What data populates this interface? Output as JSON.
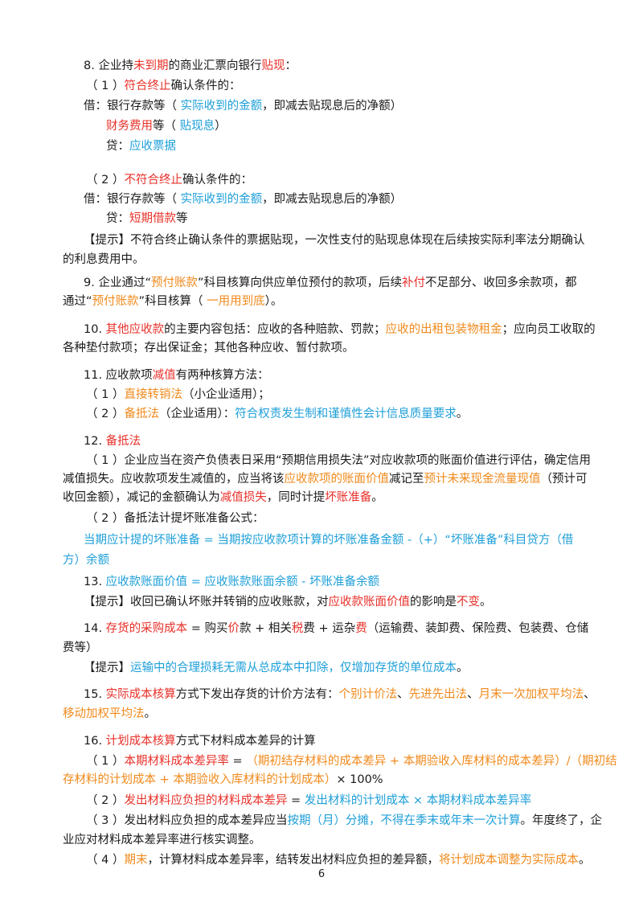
{
  "page_number": "6",
  "colors": {
    "red": "#e8312a",
    "orange": "#f08a1c",
    "blue": "#1e9fd8",
    "black": "#1a1a1a"
  },
  "lines": [
    {
      "top": 70,
      "left": 104,
      "segs": [
        [
          "k",
          "8. 企业持"
        ],
        [
          "r",
          "未到期"
        ],
        [
          "k",
          "的商业汇票向银行"
        ],
        [
          "r",
          "贴现"
        ],
        [
          "k",
          "："
        ]
      ]
    },
    {
      "top": 95,
      "left": 107,
      "segs": [
        [
          "k",
          "（ 1 ）"
        ],
        [
          "r",
          "符合终止"
        ],
        [
          "k",
          "确认条件的："
        ]
      ]
    },
    {
      "top": 120,
      "left": 104,
      "segs": [
        [
          "k",
          "借：银行存款等（ "
        ],
        [
          "b",
          "实际收到的金额"
        ],
        [
          "k",
          "，即减去贴现息后的净额）"
        ]
      ]
    },
    {
      "top": 145,
      "left": 132,
      "segs": [
        [
          "r",
          "财务费用"
        ],
        [
          "k",
          "等（ "
        ],
        [
          "b",
          "贴现息"
        ],
        [
          "k",
          "）"
        ]
      ]
    },
    {
      "top": 170,
      "left": 132,
      "segs": [
        [
          "k",
          "贷："
        ],
        [
          "b",
          "应收票据"
        ]
      ]
    },
    {
      "top": 212,
      "left": 107,
      "segs": [
        [
          "k",
          "（ 2 ）"
        ],
        [
          "r",
          "不符合终止"
        ],
        [
          "k",
          "确认条件的："
        ]
      ]
    },
    {
      "top": 236,
      "left": 104,
      "segs": [
        [
          "k",
          "借：银行存款等（ "
        ],
        [
          "b",
          "实际收到的金额"
        ],
        [
          "k",
          "，即减去贴现息后的净额）"
        ]
      ]
    },
    {
      "top": 260,
      "left": 132,
      "segs": [
        [
          "k",
          "贷："
        ],
        [
          "r",
          "短期借款"
        ],
        [
          "k",
          "等"
        ]
      ]
    },
    {
      "top": 287,
      "left": 104,
      "segs": [
        [
          "k",
          "【提示】不符合终止确认条件的票据贴现，一次性支付的贴现息体现在后续按实际利率法分期确认"
        ]
      ]
    },
    {
      "top": 311,
      "left": 78,
      "segs": [
        [
          "k",
          "的利息费用中。"
        ]
      ]
    },
    {
      "top": 340,
      "left": 104,
      "segs": [
        [
          "k",
          "9. 企业通过“"
        ],
        [
          "o",
          "预付账款"
        ],
        [
          "k",
          "”科目核算向供应单位预付的款项，后续"
        ],
        [
          "r",
          "补付"
        ],
        [
          "k",
          "不足部分、收回多余款项，都"
        ]
      ]
    },
    {
      "top": 363,
      "left": 78,
      "segs": [
        [
          "k",
          "通过“"
        ],
        [
          "o",
          "预付账款"
        ],
        [
          "k",
          "”科目核算（ "
        ],
        [
          "o",
          "一用用到底"
        ],
        [
          "k",
          "）。"
        ]
      ]
    },
    {
      "top": 398,
      "left": 104,
      "segs": [
        [
          "k",
          "10. "
        ],
        [
          "r",
          "其他应收款"
        ],
        [
          "k",
          "的主要内容包括：应收的各种赔款、罚款；"
        ],
        [
          "o",
          "应收的出租包装物租金"
        ],
        [
          "k",
          "；应向员工收取的"
        ]
      ]
    },
    {
      "top": 421,
      "left": 78,
      "segs": [
        [
          "k",
          "各种垫付款项；存出保证金；其他各种应收、暂付款项。"
        ]
      ]
    },
    {
      "top": 455,
      "left": 104,
      "segs": [
        [
          "k",
          "11. 应收款项"
        ],
        [
          "r",
          "减值"
        ],
        [
          "k",
          "有两种核算方法："
        ]
      ]
    },
    {
      "top": 479,
      "left": 107,
      "segs": [
        [
          "k",
          "（ 1 ）"
        ],
        [
          "o",
          "直接转销法"
        ],
        [
          "k",
          "（小企业适用）；"
        ]
      ]
    },
    {
      "top": 503,
      "left": 107,
      "segs": [
        [
          "k",
          "（ 2 ）"
        ],
        [
          "o",
          "备抵法"
        ],
        [
          "k",
          "（企业适用）："
        ],
        [
          "b",
          "符合权责发生制和谨慎性会计信息质量要求"
        ],
        [
          "k",
          "。"
        ]
      ]
    },
    {
      "top": 537,
      "left": 104,
      "segs": [
        [
          "k",
          "12. "
        ],
        [
          "r",
          "备抵法"
        ]
      ]
    },
    {
      "top": 561,
      "left": 107,
      "segs": [
        [
          "k",
          "（ 1 ）企业应当在资产负债表日采用“预期信用损失法”对应收款项的账面价值进行评估，确定信用"
        ]
      ]
    },
    {
      "top": 584,
      "left": 78,
      "segs": [
        [
          "k",
          "减值损失。应收款项发生减值的，应当将该"
        ],
        [
          "o",
          "应收款项的账面价值"
        ],
        [
          "k",
          "减记至"
        ],
        [
          "o",
          "预计未来现金流量现值"
        ],
        [
          "k",
          "（预计可"
        ]
      ]
    },
    {
      "top": 607,
      "left": 78,
      "segs": [
        [
          "k",
          "收回金额），减记的金额确认为"
        ],
        [
          "r",
          "减值损失"
        ],
        [
          "k",
          "，同时计提"
        ],
        [
          "r",
          "坏账准备"
        ],
        [
          "k",
          "。"
        ]
      ]
    },
    {
      "top": 633,
      "left": 107,
      "segs": [
        [
          "k",
          "（ 2 ）备抵法计提坏账准备公式："
        ]
      ]
    },
    {
      "top": 660,
      "left": 104,
      "segs": [
        [
          "b",
          "当期应计提的坏账准备 = 当期按应收款项计算的坏账准备金额 -（+）“坏账准备”科目贷方（借"
        ]
      ]
    },
    {
      "top": 685,
      "left": 78,
      "segs": [
        [
          "b",
          "方）余额"
        ]
      ]
    },
    {
      "top": 712,
      "left": 104,
      "segs": [
        [
          "k",
          "13. "
        ],
        [
          "b",
          "应收款账面价值 = 应收账款账面余额 - 坏账准备余额"
        ]
      ]
    },
    {
      "top": 737,
      "left": 104,
      "segs": [
        [
          "k",
          "【提示】收回已确认坏账并转销的应收账款，对"
        ],
        [
          "r",
          "应收款账面价值"
        ],
        [
          "k",
          "的影响是"
        ],
        [
          "r",
          "不变"
        ],
        [
          "k",
          "。"
        ]
      ]
    },
    {
      "top": 770,
      "left": 104,
      "segs": [
        [
          "k",
          "14. "
        ],
        [
          "r",
          "存货的采购成本"
        ],
        [
          "k",
          " = 购买"
        ],
        [
          "r",
          "价"
        ],
        [
          "k",
          "款 + 相关"
        ],
        [
          "r",
          "税"
        ],
        [
          "k",
          "费 + 运杂"
        ],
        [
          "r",
          "费"
        ],
        [
          "k",
          "（运输费、装卸费、保险费、包装费、仓储"
        ]
      ]
    },
    {
      "top": 794,
      "left": 78,
      "segs": [
        [
          "k",
          "费等）"
        ]
      ]
    },
    {
      "top": 819,
      "left": 104,
      "segs": [
        [
          "k",
          "【提示】"
        ],
        [
          "b",
          "运输中的合理损耗无需从总成本中扣除，仅增加存货的单位成本"
        ],
        [
          "k",
          "。"
        ]
      ]
    },
    {
      "top": 852,
      "left": 104,
      "segs": [
        [
          "k",
          "15. "
        ],
        [
          "r",
          "实际成本核算"
        ],
        [
          "k",
          "方式下发出存货的计价方法有："
        ],
        [
          "o",
          "个别计价法"
        ],
        [
          "k",
          "、"
        ],
        [
          "o",
          "先进先出法"
        ],
        [
          "k",
          "、"
        ],
        [
          "o",
          "月末一次加权平均法"
        ],
        [
          "k",
          "、"
        ]
      ]
    },
    {
      "top": 876,
      "left": 78,
      "segs": [
        [
          "o",
          "移动加权平均法"
        ],
        [
          "k",
          "。"
        ]
      ]
    },
    {
      "top": 910,
      "left": 104,
      "segs": [
        [
          "k",
          "16. "
        ],
        [
          "r",
          "计划成本核算"
        ],
        [
          "k",
          "方式下材料成本差异的计算"
        ]
      ]
    },
    {
      "top": 935,
      "left": 107,
      "segs": [
        [
          "k",
          "（ 1 ）"
        ],
        [
          "r",
          "本期材料成本差异率"
        ],
        [
          "k",
          " = "
        ],
        [
          "o",
          "（期初结存材料的成本差异 + 本期验收入库材料的成本差异）/（期初结"
        ]
      ]
    },
    {
      "top": 958,
      "left": 78,
      "segs": [
        [
          "o",
          "存材料的计划成本 + 本期验收入库材料的计划成本）"
        ],
        [
          "k",
          "× 100%"
        ]
      ]
    },
    {
      "top": 984,
      "left": 107,
      "segs": [
        [
          "k",
          "（ 2 ）"
        ],
        [
          "r",
          "发出材料应负担的材料成本差异"
        ],
        [
          "k",
          " = "
        ],
        [
          "b",
          "发出材料的计划成本 × 本期材料成本差异率"
        ]
      ]
    },
    {
      "top": 1009,
      "left": 107,
      "segs": [
        [
          "k",
          "（ 3 ）发出材料应负担的成本差异应当"
        ],
        [
          "b",
          "按期（月）分摊，不得在季末或年末一次计算"
        ],
        [
          "k",
          "。年度终了，企"
        ]
      ]
    },
    {
      "top": 1033,
      "left": 78,
      "segs": [
        [
          "k",
          "业应对材料成本差异率进行核实调整。"
        ]
      ]
    },
    {
      "top": 1058,
      "left": 107,
      "segs": [
        [
          "k",
          "（ 4 ）"
        ],
        [
          "o",
          "期末"
        ],
        [
          "k",
          "，计算材料成本差异率，结转发出材料应负担的差异额，"
        ],
        [
          "o",
          "将计划成本调整为实际成本"
        ],
        [
          "k",
          "。"
        ]
      ]
    }
  ]
}
